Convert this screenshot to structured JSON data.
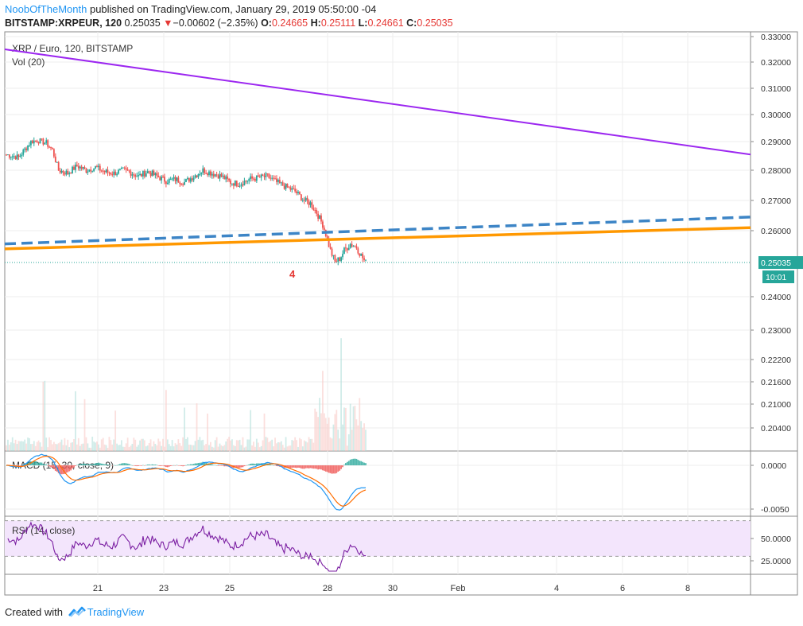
{
  "header": {
    "username": "NoobOfTheMonth",
    "published_text": "published on TradingView.com, January 29, 2019 05:50:00 -04",
    "symbol": "BITSTAMP:XRPEUR, 120",
    "last": "0.25035",
    "change_arrow": "▼",
    "change": "−0.00602 (−2.35%)",
    "o_label": "O:",
    "o_value": "0.24665",
    "h_label": "H:",
    "h_value": "0.25111",
    "l_label": "L:",
    "l_value": "0.24661",
    "c_label": "C:",
    "c_value": "0.25035"
  },
  "footer": {
    "created_with": "Created with",
    "brand": "TradingView"
  },
  "colors": {
    "up": "#26a69a",
    "down": "#ef5350",
    "purple_line": "#9c27f0",
    "blue_dashed": "#3d85c6",
    "orange_line": "#ff9800",
    "macd": "#2196f3",
    "signal": "#ff6d00",
    "rsi": "#7b1fa2",
    "rsi_band": "#f3e5fc",
    "last_price_tag": "#26a69a",
    "annotation": "#e53935"
  },
  "chart_data": {
    "type": "candlestick",
    "title": "XRP / Euro, 120, BITSTAMP",
    "volume_label": "Vol (20)",
    "price_axis": {
      "ticks": [
        "0.33000",
        "0.32000",
        "0.31000",
        "0.30000",
        "0.29000",
        "0.28000",
        "0.27000",
        "0.26000",
        "0.24000",
        "0.23000",
        "0.22200",
        "0.21600",
        "0.21000",
        "0.20400"
      ],
      "tick_values": [
        0.33,
        0.32,
        0.31,
        0.3,
        0.29,
        0.28,
        0.27,
        0.26,
        0.24,
        0.23,
        0.222,
        0.216,
        0.21,
        0.204
      ]
    },
    "x_axis": {
      "ticks": [
        "21",
        "23",
        "25",
        "28",
        "30",
        "Feb",
        "4",
        "6",
        "8"
      ]
    },
    "last_price": "0.25035",
    "countdown": "10:01",
    "annotation": "4",
    "close_path": [
      [
        0,
        0.2855
      ],
      [
        8,
        0.2845
      ],
      [
        16,
        0.29
      ],
      [
        20,
        0.2905
      ],
      [
        26,
        0.2895
      ],
      [
        30,
        0.287
      ],
      [
        34,
        0.28
      ],
      [
        40,
        0.279
      ],
      [
        46,
        0.2815
      ],
      [
        52,
        0.28
      ],
      [
        58,
        0.281
      ],
      [
        64,
        0.2795
      ],
      [
        70,
        0.279
      ],
      [
        76,
        0.28
      ],
      [
        80,
        0.2795
      ],
      [
        86,
        0.278
      ],
      [
        92,
        0.2795
      ],
      [
        98,
        0.278
      ],
      [
        104,
        0.2765
      ],
      [
        110,
        0.277
      ],
      [
        116,
        0.276
      ],
      [
        122,
        0.278
      ],
      [
        128,
        0.28
      ],
      [
        134,
        0.279
      ],
      [
        140,
        0.278
      ],
      [
        146,
        0.276
      ],
      [
        152,
        0.2755
      ],
      [
        158,
        0.277
      ],
      [
        164,
        0.2775
      ],
      [
        170,
        0.278
      ],
      [
        176,
        0.276
      ],
      [
        182,
        0.2745
      ],
      [
        188,
        0.273
      ],
      [
        194,
        0.27
      ],
      [
        198,
        0.269
      ],
      [
        202,
        0.266
      ],
      [
        206,
        0.262
      ],
      [
        208,
        0.259
      ],
      [
        211,
        0.254
      ],
      [
        214,
        0.2505
      ],
      [
        217,
        0.2515
      ],
      [
        220,
        0.254
      ],
      [
        224,
        0.256
      ],
      [
        228,
        0.255
      ],
      [
        231,
        0.2525
      ],
      [
        234,
        0.2503
      ]
    ],
    "trend_lines": [
      {
        "style": "solid",
        "color": "purple",
        "from": [
          "start",
          0.325
        ],
        "to": [
          "end",
          0.2855
        ]
      },
      {
        "style": "dashed",
        "color": "blue",
        "from": [
          "start",
          0.256
        ],
        "to": [
          "end",
          0.2645
        ]
      },
      {
        "style": "solid",
        "color": "orange",
        "from": [
          "start",
          0.2545
        ],
        "to": [
          "end",
          0.261
        ]
      }
    ],
    "macd": {
      "label": "MACD (15, 30, close, 9)",
      "ticks": [
        "0.0000",
        "-0.0050"
      ],
      "tick_values": [
        0.0,
        -0.005
      ]
    },
    "rsi": {
      "label": "RSI (14, close)",
      "ticks": [
        "50.0000",
        "25.0000"
      ],
      "tick_values": [
        50,
        25
      ],
      "band": [
        30,
        70
      ]
    }
  }
}
